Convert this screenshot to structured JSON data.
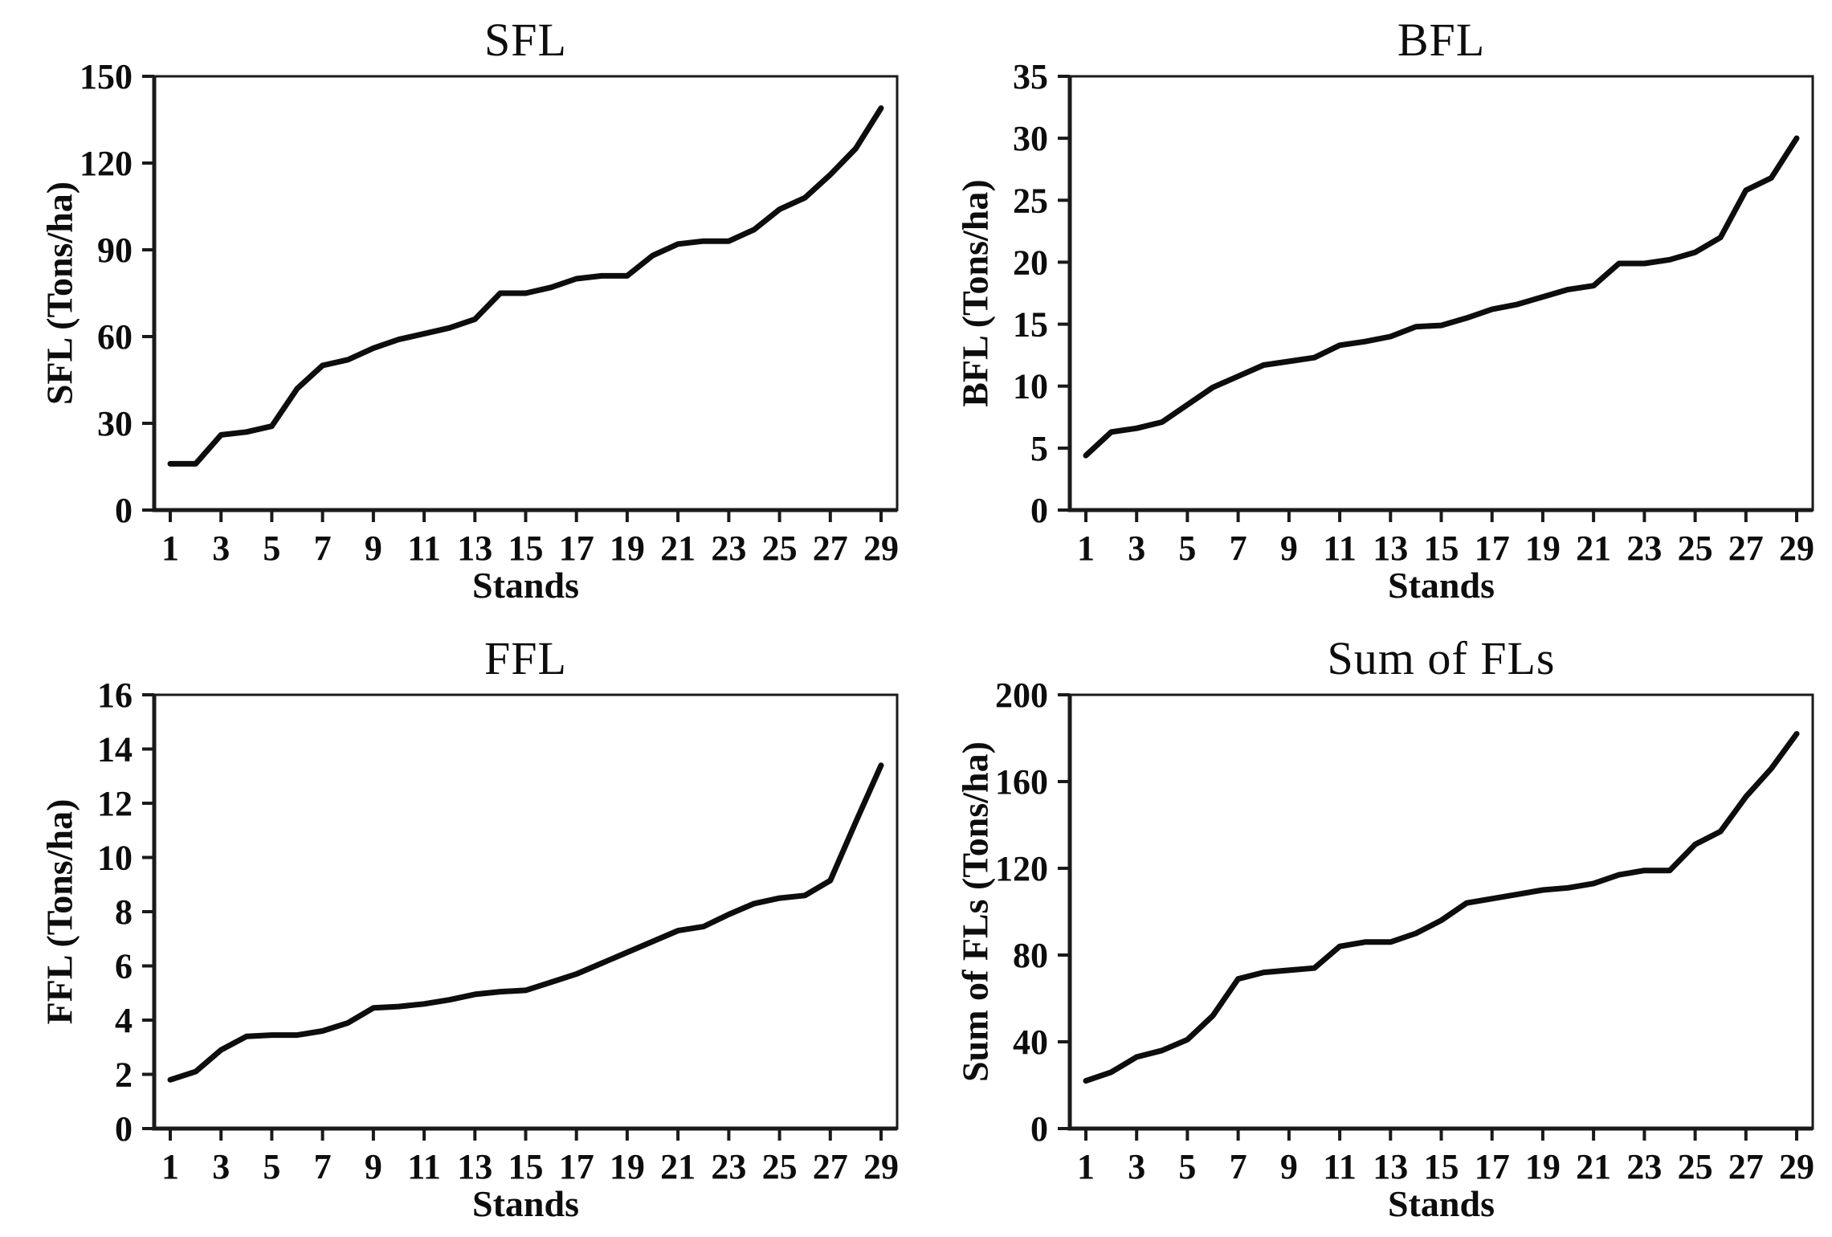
{
  "figure": {
    "background": "#ffffff",
    "axis_color": "#1a1a1a",
    "text_color": "#0d0d0d"
  },
  "chart_data": [
    {
      "type": "line",
      "title": "SFL",
      "xlabel": "Stands",
      "ylabel": "SFL (Tons/ha)",
      "line_color": "#0d0d0d",
      "line_width": 7,
      "ylim": [
        0,
        150
      ],
      "yticks": [
        0,
        30,
        60,
        90,
        120,
        150
      ],
      "xticks": [
        1,
        3,
        5,
        7,
        9,
        11,
        13,
        15,
        17,
        19,
        21,
        23,
        25,
        27,
        29
      ],
      "x": [
        1,
        2,
        3,
        4,
        5,
        6,
        7,
        8,
        9,
        10,
        11,
        12,
        13,
        14,
        15,
        16,
        17,
        18,
        19,
        20,
        21,
        22,
        23,
        24,
        25,
        26,
        27,
        28,
        29
      ],
      "values": [
        16,
        16,
        26,
        27,
        29,
        42,
        50,
        52,
        56,
        59,
        61,
        63,
        66,
        75,
        75,
        77,
        80,
        81,
        81,
        88,
        92,
        93,
        93,
        97,
        104,
        108,
        116,
        125,
        139
      ],
      "legend": null,
      "grid": false
    },
    {
      "type": "line",
      "title": "BFL",
      "xlabel": "Stands",
      "ylabel": "BFL (Tons/ha)",
      "line_color": "#0d0d0d",
      "line_width": 7,
      "ylim": [
        0,
        35
      ],
      "yticks": [
        0,
        5,
        10,
        15,
        20,
        25,
        30,
        35
      ],
      "xticks": [
        1,
        3,
        5,
        7,
        9,
        11,
        13,
        15,
        17,
        19,
        21,
        23,
        25,
        27,
        29
      ],
      "x": [
        1,
        2,
        3,
        4,
        5,
        6,
        7,
        8,
        9,
        10,
        11,
        12,
        13,
        14,
        15,
        16,
        17,
        18,
        19,
        20,
        21,
        22,
        23,
        24,
        25,
        26,
        27,
        28,
        29
      ],
      "values": [
        4.4,
        6.3,
        6.6,
        7.1,
        8.5,
        9.9,
        10.8,
        11.7,
        12.0,
        12.3,
        13.3,
        13.6,
        14.0,
        14.8,
        14.9,
        15.5,
        16.2,
        16.6,
        17.2,
        17.8,
        18.1,
        19.9,
        19.9,
        20.2,
        20.8,
        22.0,
        25.8,
        26.8,
        30.0
      ],
      "legend": null,
      "grid": false
    },
    {
      "type": "line",
      "title": "FFL",
      "xlabel": "Stands",
      "ylabel": "FFL (Tons/ha)",
      "line_color": "#0d0d0d",
      "line_width": 7,
      "ylim": [
        0,
        16
      ],
      "yticks": [
        0,
        2,
        4,
        6,
        8,
        10,
        12,
        14,
        16
      ],
      "xticks": [
        1,
        3,
        5,
        7,
        9,
        11,
        13,
        15,
        17,
        19,
        21,
        23,
        25,
        27,
        29
      ],
      "x": [
        1,
        2,
        3,
        4,
        5,
        6,
        7,
        8,
        9,
        10,
        11,
        12,
        13,
        14,
        15,
        16,
        17,
        18,
        19,
        20,
        21,
        22,
        23,
        24,
        25,
        26,
        27,
        28,
        29
      ],
      "values": [
        1.8,
        2.1,
        2.9,
        3.4,
        3.45,
        3.45,
        3.6,
        3.9,
        4.45,
        4.5,
        4.6,
        4.75,
        4.95,
        5.05,
        5.1,
        5.4,
        5.7,
        6.1,
        6.5,
        6.9,
        7.3,
        7.45,
        7.9,
        8.3,
        8.5,
        8.6,
        9.15,
        11.3,
        13.4
      ],
      "legend": null,
      "grid": false
    },
    {
      "type": "line",
      "title": "Sum of FLs",
      "xlabel": "Stands",
      "ylabel": "Sum of FLs (Tons/ha)",
      "line_color": "#0d0d0d",
      "line_width": 7,
      "ylim": [
        0,
        200
      ],
      "yticks": [
        0,
        40,
        80,
        120,
        160,
        200
      ],
      "xticks": [
        1,
        3,
        5,
        7,
        9,
        11,
        13,
        15,
        17,
        19,
        21,
        23,
        25,
        27,
        29
      ],
      "x": [
        1,
        2,
        3,
        4,
        5,
        6,
        7,
        8,
        9,
        10,
        11,
        12,
        13,
        14,
        15,
        16,
        17,
        18,
        19,
        20,
        21,
        22,
        23,
        24,
        25,
        26,
        27,
        28,
        29
      ],
      "values": [
        22,
        26,
        33,
        36,
        41,
        52,
        69,
        72,
        73,
        74,
        84,
        86,
        86,
        90,
        96,
        104,
        106,
        108,
        110,
        111,
        113,
        117,
        119,
        119,
        131,
        137,
        153,
        166,
        182
      ],
      "legend": null,
      "grid": false
    }
  ]
}
